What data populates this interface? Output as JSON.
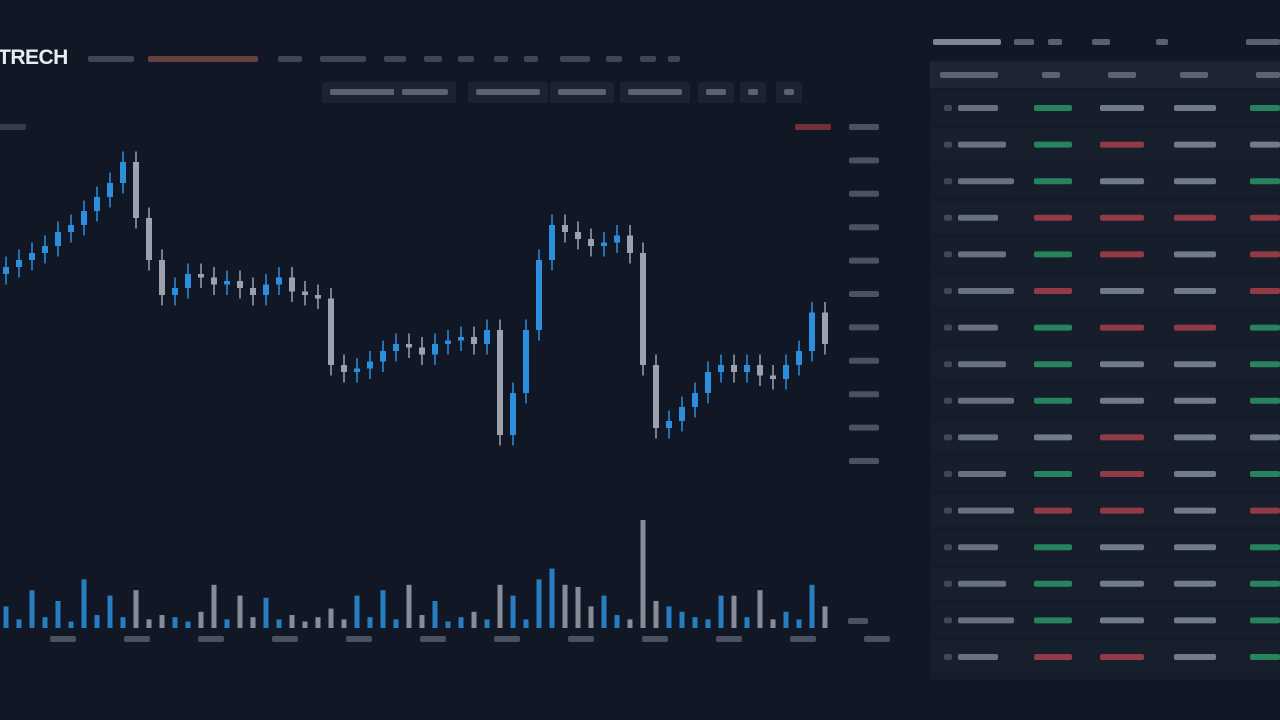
{
  "header": {
    "title": "TRECH"
  },
  "chart_data": {
    "type": "candlestick",
    "open": [
      56,
      58,
      60,
      62,
      64,
      68,
      70,
      74,
      78,
      82,
      88,
      72,
      60,
      50,
      52,
      56,
      55,
      53,
      54,
      52,
      50,
      53,
      55,
      51,
      50,
      49,
      30,
      28,
      29,
      31,
      34,
      36,
      35,
      33,
      36,
      37,
      38,
      36,
      40,
      10,
      22,
      40,
      60,
      70,
      68,
      66,
      64,
      65,
      67,
      62,
      30,
      12,
      14,
      18,
      22,
      28,
      30,
      28,
      30,
      27,
      26,
      30,
      34,
      45
    ],
    "high": [
      61,
      63,
      65,
      67,
      71,
      73,
      77,
      81,
      85,
      91,
      91,
      75,
      63,
      55,
      59,
      59,
      58,
      57,
      57,
      55,
      56,
      58,
      58,
      54,
      53,
      52,
      33,
      32,
      34,
      37,
      39,
      39,
      38,
      39,
      40,
      41,
      41,
      43,
      43,
      25,
      43,
      63,
      73,
      73,
      71,
      69,
      68,
      70,
      70,
      65,
      33,
      17,
      21,
      25,
      31,
      33,
      33,
      33,
      33,
      30,
      33,
      37,
      48,
      48
    ],
    "low": [
      53,
      55,
      57,
      59,
      61,
      65,
      67,
      71,
      75,
      79,
      69,
      57,
      47,
      47,
      49,
      52,
      50,
      50,
      49,
      47,
      47,
      50,
      48,
      47,
      46,
      27,
      25,
      25,
      26,
      28,
      31,
      32,
      30,
      30,
      33,
      34,
      33,
      33,
      7,
      7,
      19,
      37,
      57,
      65,
      63,
      61,
      61,
      62,
      59,
      27,
      9,
      9,
      11,
      15,
      19,
      25,
      25,
      25,
      24,
      23,
      23,
      27,
      31,
      33
    ],
    "close": [
      58,
      60,
      62,
      64,
      68,
      70,
      74,
      78,
      82,
      88,
      72,
      60,
      50,
      52,
      56,
      55,
      53,
      54,
      52,
      50,
      53,
      55,
      51,
      50,
      49,
      30,
      28,
      29,
      31,
      34,
      36,
      35,
      33,
      36,
      37,
      38,
      36,
      40,
      10,
      22,
      40,
      60,
      70,
      68,
      66,
      64,
      65,
      67,
      62,
      30,
      12,
      14,
      18,
      22,
      28,
      30,
      28,
      30,
      27,
      26,
      30,
      34,
      45,
      36
    ],
    "volume": [
      20,
      8,
      35,
      10,
      25,
      6,
      45,
      12,
      30,
      10,
      35,
      8,
      12,
      10,
      6,
      15,
      40,
      8,
      30,
      10,
      28,
      8,
      12,
      6,
      10,
      18,
      8,
      30,
      10,
      35,
      8,
      40,
      12,
      25,
      6,
      10,
      15,
      8,
      40,
      30,
      8,
      45,
      55,
      40,
      38,
      20,
      30,
      12,
      8,
      100,
      25,
      20,
      15,
      10,
      8,
      30,
      30,
      10,
      35,
      8,
      15,
      8,
      40,
      20
    ],
    "ylim": [
      0,
      100
    ],
    "volume_lim": [
      0,
      100
    ],
    "up_color": "#2b8fdd",
    "down_color": "#9ba2ad"
  }
}
